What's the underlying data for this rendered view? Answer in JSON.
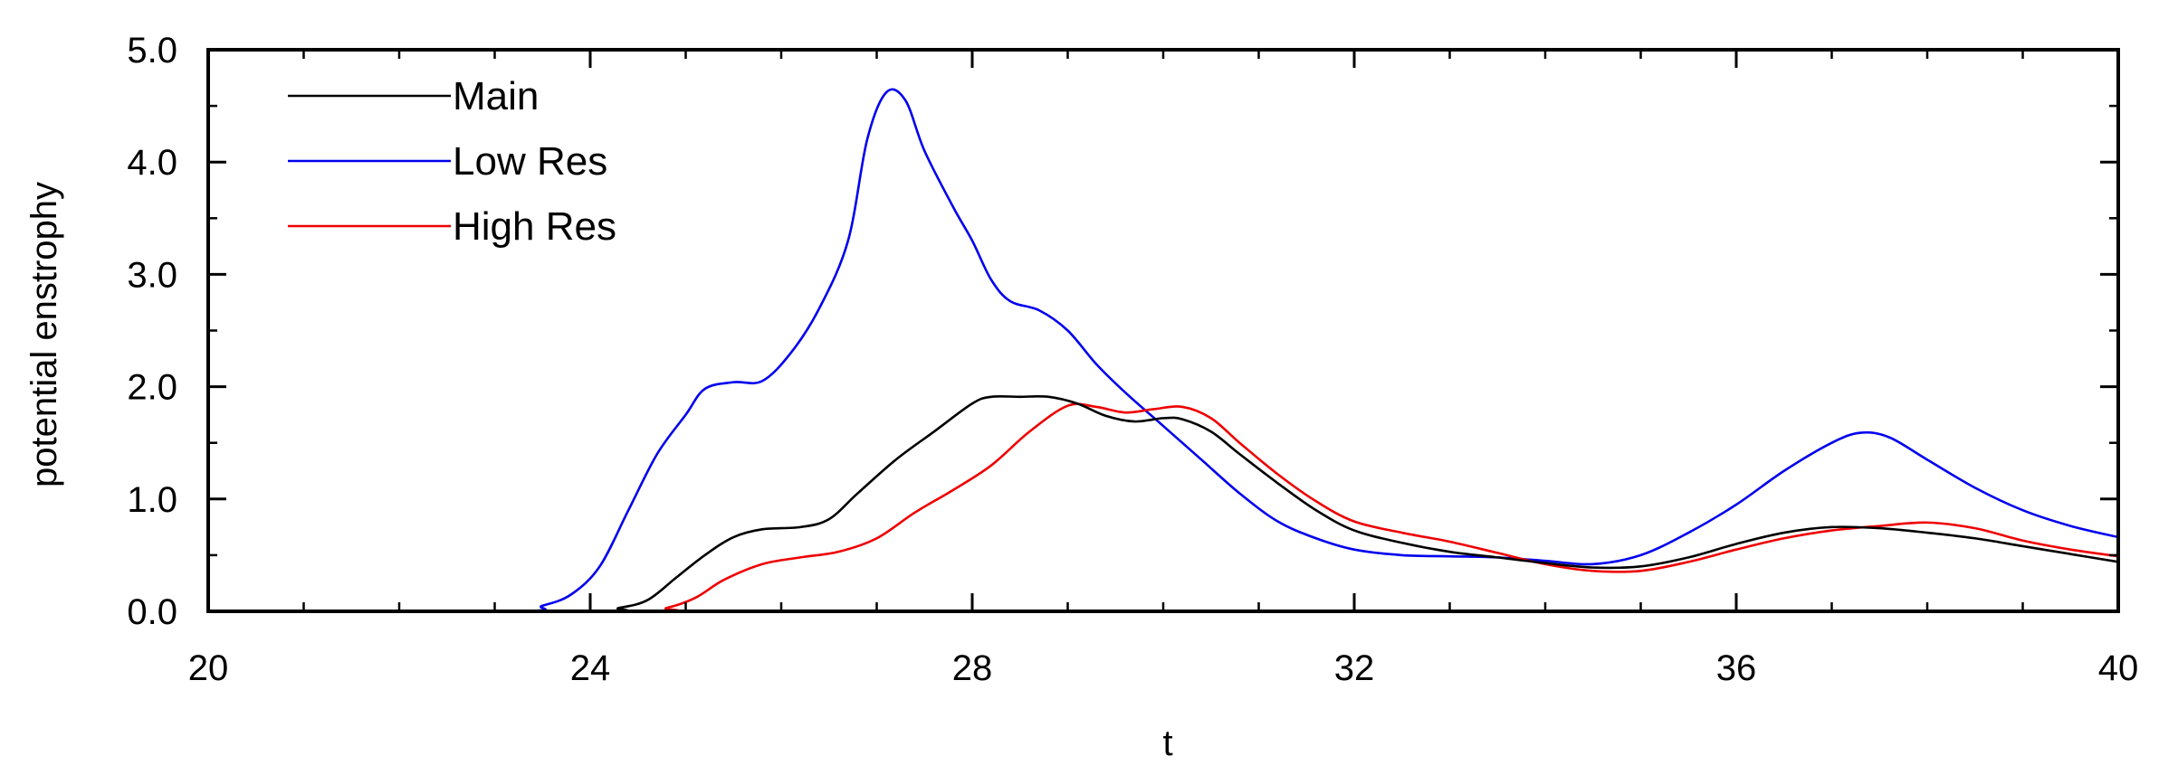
{
  "chart_data": {
    "type": "line",
    "title": "",
    "xlabel": "t",
    "ylabel": "potential enstrophy",
    "xlim": [
      20,
      40
    ],
    "ylim": [
      0,
      5
    ],
    "x_ticks": [
      20,
      24,
      28,
      32,
      36,
      40
    ],
    "x_tick_labels": [
      "20",
      "24",
      "28",
      "32",
      "36",
      "40"
    ],
    "y_ticks": [
      0,
      1,
      2,
      3,
      4,
      5
    ],
    "y_tick_labels": [
      "0.0",
      "1.0",
      "2.0",
      "3.0",
      "4.0",
      "5.0"
    ],
    "grid": false,
    "legend_position": "top-left",
    "series": [
      {
        "name": "Main",
        "color": "#000000",
        "points": [
          [
            20,
            0
          ],
          [
            24,
            0
          ],
          [
            24.3,
            0.03
          ],
          [
            24.6,
            0.1
          ],
          [
            24.9,
            0.3
          ],
          [
            25.2,
            0.5
          ],
          [
            25.5,
            0.66
          ],
          [
            25.8,
            0.73
          ],
          [
            26.2,
            0.75
          ],
          [
            26.5,
            0.82
          ],
          [
            26.8,
            1.05
          ],
          [
            27.2,
            1.35
          ],
          [
            27.6,
            1.6
          ],
          [
            28.0,
            1.85
          ],
          [
            28.2,
            1.91
          ],
          [
            28.5,
            1.91
          ],
          [
            28.8,
            1.91
          ],
          [
            29.1,
            1.85
          ],
          [
            29.4,
            1.74
          ],
          [
            29.7,
            1.69
          ],
          [
            30.0,
            1.72
          ],
          [
            30.2,
            1.71
          ],
          [
            30.5,
            1.6
          ],
          [
            30.8,
            1.4
          ],
          [
            31.2,
            1.14
          ],
          [
            31.6,
            0.9
          ],
          [
            32.0,
            0.72
          ],
          [
            32.5,
            0.61
          ],
          [
            33.0,
            0.53
          ],
          [
            33.5,
            0.48
          ],
          [
            34.0,
            0.43
          ],
          [
            34.5,
            0.39
          ],
          [
            35.0,
            0.4
          ],
          [
            35.5,
            0.48
          ],
          [
            36.0,
            0.6
          ],
          [
            36.5,
            0.7
          ],
          [
            37.0,
            0.75
          ],
          [
            37.5,
            0.74
          ],
          [
            38.0,
            0.7
          ],
          [
            38.5,
            0.65
          ],
          [
            39.0,
            0.58
          ],
          [
            39.5,
            0.51
          ],
          [
            40.0,
            0.44
          ]
        ]
      },
      {
        "name": "Low Res",
        "color": "#0000ee",
        "points": [
          [
            20,
            0
          ],
          [
            23.2,
            0
          ],
          [
            23.5,
            0.05
          ],
          [
            23.8,
            0.15
          ],
          [
            24.1,
            0.4
          ],
          [
            24.4,
            0.9
          ],
          [
            24.7,
            1.4
          ],
          [
            25.0,
            1.75
          ],
          [
            25.2,
            1.98
          ],
          [
            25.5,
            2.04
          ],
          [
            25.8,
            2.05
          ],
          [
            26.1,
            2.3
          ],
          [
            26.4,
            2.7
          ],
          [
            26.7,
            3.3
          ],
          [
            26.9,
            4.2
          ],
          [
            27.1,
            4.62
          ],
          [
            27.3,
            4.55
          ],
          [
            27.5,
            4.1
          ],
          [
            27.8,
            3.6
          ],
          [
            28.0,
            3.3
          ],
          [
            28.2,
            2.95
          ],
          [
            28.4,
            2.76
          ],
          [
            28.7,
            2.68
          ],
          [
            29.0,
            2.5
          ],
          [
            29.3,
            2.2
          ],
          [
            29.6,
            1.95
          ],
          [
            30.0,
            1.65
          ],
          [
            30.4,
            1.35
          ],
          [
            30.8,
            1.05
          ],
          [
            31.2,
            0.8
          ],
          [
            31.6,
            0.65
          ],
          [
            32.0,
            0.55
          ],
          [
            32.5,
            0.5
          ],
          [
            33.0,
            0.49
          ],
          [
            33.5,
            0.48
          ],
          [
            34.0,
            0.45
          ],
          [
            34.5,
            0.42
          ],
          [
            35.0,
            0.5
          ],
          [
            35.5,
            0.7
          ],
          [
            36.0,
            0.95
          ],
          [
            36.5,
            1.25
          ],
          [
            37.0,
            1.5
          ],
          [
            37.3,
            1.59
          ],
          [
            37.6,
            1.55
          ],
          [
            38.0,
            1.35
          ],
          [
            38.5,
            1.1
          ],
          [
            39.0,
            0.9
          ],
          [
            39.5,
            0.76
          ],
          [
            40.0,
            0.66
          ]
        ]
      },
      {
        "name": "High Res",
        "color": "#ee0000",
        "points": [
          [
            20,
            0
          ],
          [
            24.5,
            0
          ],
          [
            24.8,
            0.03
          ],
          [
            25.1,
            0.12
          ],
          [
            25.4,
            0.28
          ],
          [
            25.8,
            0.42
          ],
          [
            26.2,
            0.48
          ],
          [
            26.6,
            0.53
          ],
          [
            27.0,
            0.65
          ],
          [
            27.4,
            0.88
          ],
          [
            27.8,
            1.08
          ],
          [
            28.2,
            1.3
          ],
          [
            28.6,
            1.6
          ],
          [
            29.0,
            1.83
          ],
          [
            29.3,
            1.82
          ],
          [
            29.6,
            1.77
          ],
          [
            29.9,
            1.8
          ],
          [
            30.2,
            1.82
          ],
          [
            30.5,
            1.72
          ],
          [
            30.8,
            1.5
          ],
          [
            31.2,
            1.22
          ],
          [
            31.6,
            0.98
          ],
          [
            32.0,
            0.8
          ],
          [
            32.5,
            0.7
          ],
          [
            33.0,
            0.62
          ],
          [
            33.5,
            0.52
          ],
          [
            34.0,
            0.42
          ],
          [
            34.5,
            0.36
          ],
          [
            35.0,
            0.36
          ],
          [
            35.5,
            0.44
          ],
          [
            36.0,
            0.55
          ],
          [
            36.5,
            0.65
          ],
          [
            37.0,
            0.72
          ],
          [
            37.5,
            0.76
          ],
          [
            38.0,
            0.79
          ],
          [
            38.5,
            0.74
          ],
          [
            39.0,
            0.63
          ],
          [
            39.5,
            0.55
          ],
          [
            40.0,
            0.49
          ]
        ]
      }
    ]
  }
}
